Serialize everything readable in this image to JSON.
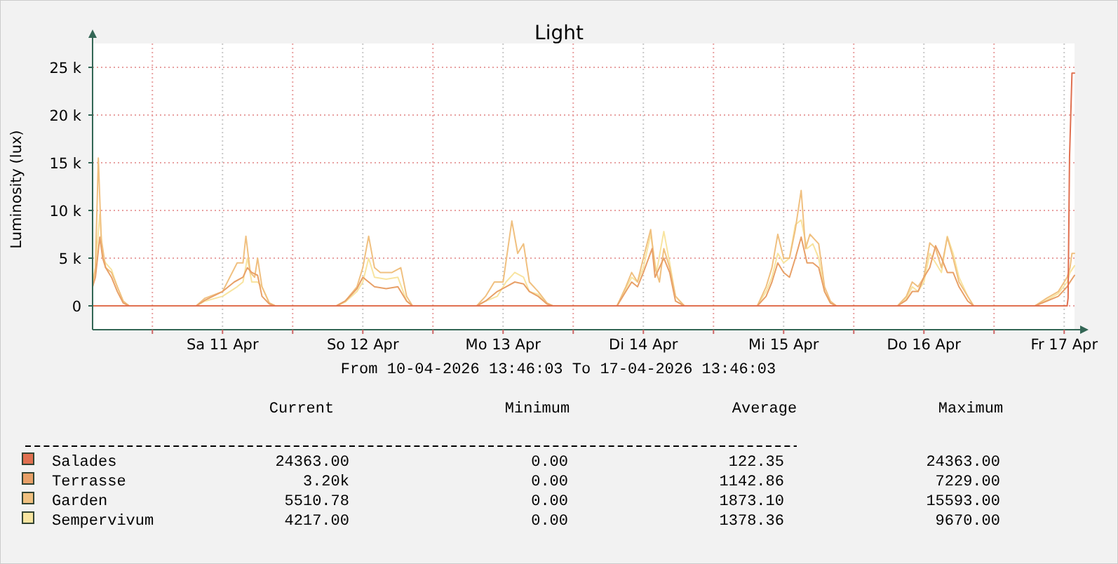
{
  "chart_data": {
    "type": "line",
    "title": "Light",
    "ylabel": "Luminosity (lux)",
    "xlim": [
      "2026-04-10T13:46",
      "2026-04-17T13:46"
    ],
    "xticks": [
      {
        "value": "2026-04-11T00:00",
        "label": null
      },
      {
        "value": "2026-04-11T12:00",
        "label": "Sa 11 Apr"
      },
      {
        "value": "2026-04-12T00:00",
        "label": null
      },
      {
        "value": "2026-04-12T12:00",
        "label": "So 12 Apr"
      },
      {
        "value": "2026-04-13T00:00",
        "label": null
      },
      {
        "value": "2026-04-13T12:00",
        "label": "Mo 13 Apr"
      },
      {
        "value": "2026-04-14T00:00",
        "label": null
      },
      {
        "value": "2026-04-14T12:00",
        "label": "Di 14 Apr"
      },
      {
        "value": "2026-04-15T00:00",
        "label": null
      },
      {
        "value": "2026-04-15T12:00",
        "label": "Mi 15 Apr"
      },
      {
        "value": "2026-04-16T00:00",
        "label": null
      },
      {
        "value": "2026-04-16T12:00",
        "label": "Do 16 Apr"
      },
      {
        "value": "2026-04-17T00:00",
        "label": null
      },
      {
        "value": "2026-04-17T12:00",
        "label": "Fr 17 Apr"
      }
    ],
    "ylim": [
      -2500,
      27500
    ],
    "yticks": [
      0,
      {
        "value": 5000,
        "label": "5 k"
      },
      {
        "value": 10000,
        "label": "10 k"
      },
      {
        "value": 15000,
        "label": "15 k"
      },
      {
        "value": 20000,
        "label": "20 k"
      },
      {
        "value": 25000,
        "label": "25 k"
      }
    ],
    "grid": true,
    "legend": "bottom",
    "marker": "none",
    "line_style": "solid",
    "series": [
      {
        "name": "Sempervivum",
        "color": "#f8e4a0",
        "x": [
          "2026-04-10T13:46",
          "2026-04-10T14:15",
          "2026-04-10T15:00",
          "2026-04-10T15:30",
          "2026-04-10T16:00",
          "2026-04-10T17:00",
          "2026-04-10T18:00",
          "2026-04-10T19:00",
          "2026-04-10T20:00",
          "2026-04-11T07:30",
          "2026-04-11T09:00",
          "2026-04-11T12:00",
          "2026-04-11T14:30",
          "2026-04-11T15:30",
          "2026-04-11T16:15",
          "2026-04-11T17:00",
          "2026-04-11T18:00",
          "2026-04-11T18:45",
          "2026-04-11T20:00",
          "2026-04-11T21:00",
          "2026-04-12T07:30",
          "2026-04-12T09:00",
          "2026-04-12T11:00",
          "2026-04-12T12:00",
          "2026-04-12T13:00",
          "2026-04-12T14:00",
          "2026-04-12T16:00",
          "2026-04-12T18:00",
          "2026-04-12T19:30",
          "2026-04-12T20:30",
          "2026-04-13T07:30",
          "2026-04-13T09:00",
          "2026-04-13T11:00",
          "2026-04-13T12:30",
          "2026-04-13T14:00",
          "2026-04-13T15:30",
          "2026-04-13T16:30",
          "2026-04-13T18:00",
          "2026-04-13T19:30",
          "2026-04-13T20:30",
          "2026-04-14T07:30",
          "2026-04-14T09:00",
          "2026-04-14T10:00",
          "2026-04-14T11:00",
          "2026-04-14T12:00",
          "2026-04-14T13:15",
          "2026-04-14T14:15",
          "2026-04-14T15:30",
          "2026-04-14T16:30",
          "2026-04-14T17:30",
          "2026-04-14T19:00",
          "2026-04-15T07:30",
          "2026-04-15T09:00",
          "2026-04-15T10:00",
          "2026-04-15T11:00",
          "2026-04-15T12:00",
          "2026-04-15T13:00",
          "2026-04-15T14:00",
          "2026-04-15T15:00",
          "2026-04-15T16:00",
          "2026-04-15T17:00",
          "2026-04-15T18:00",
          "2026-04-15T19:00",
          "2026-04-15T20:00",
          "2026-04-15T21:00",
          "2026-04-16T07:30",
          "2026-04-16T09:00",
          "2026-04-16T10:00",
          "2026-04-16T11:00",
          "2026-04-16T12:00",
          "2026-04-16T13:00",
          "2026-04-16T14:00",
          "2026-04-16T15:00",
          "2026-04-16T16:00",
          "2026-04-16T17:00",
          "2026-04-16T18:00",
          "2026-04-16T19:30",
          "2026-04-16T20:30",
          "2026-04-17T07:00",
          "2026-04-17T09:00",
          "2026-04-17T11:00",
          "2026-04-17T12:30",
          "2026-04-17T13:00",
          "2026-04-17T13:46"
        ],
        "values": [
          2500,
          4000,
          9600,
          5000,
          4500,
          3800,
          2000,
          500,
          0,
          0,
          500,
          1000,
          2000,
          2500,
          5000,
          2500,
          2500,
          2000,
          300,
          0,
          0,
          400,
          1500,
          2500,
          5000,
          3000,
          2800,
          3000,
          500,
          0,
          0,
          500,
          1000,
          2500,
          3500,
          3000,
          1500,
          1200,
          200,
          0,
          0,
          1800,
          3000,
          2500,
          4000,
          7500,
          3500,
          7800,
          4500,
          1000,
          0,
          0,
          1500,
          3000,
          5500,
          4500,
          5000,
          8500,
          9000,
          6000,
          6500,
          5000,
          1500,
          300,
          0,
          0,
          800,
          2000,
          1500,
          2500,
          5500,
          4500,
          3500,
          7300,
          5500,
          3000,
          1000,
          0,
          0,
          600,
          1300,
          2500,
          3500,
          4200
        ]
      },
      {
        "name": "Garden",
        "color": "#f0c080",
        "x": [
          "2026-04-10T13:46",
          "2026-04-10T14:15",
          "2026-04-10T14:45",
          "2026-04-10T15:15",
          "2026-04-10T16:00",
          "2026-04-10T17:00",
          "2026-04-10T18:00",
          "2026-04-10T19:00",
          "2026-04-10T20:00",
          "2026-04-11T07:30",
          "2026-04-11T09:00",
          "2026-04-11T12:00",
          "2026-04-11T14:30",
          "2026-04-11T15:30",
          "2026-04-11T16:00",
          "2026-04-11T16:45",
          "2026-04-11T17:30",
          "2026-04-11T18:00",
          "2026-04-11T18:45",
          "2026-04-11T20:00",
          "2026-04-11T21:00",
          "2026-04-12T07:30",
          "2026-04-12T09:00",
          "2026-04-12T11:00",
          "2026-04-12T12:00",
          "2026-04-12T13:00",
          "2026-04-12T14:00",
          "2026-04-12T15:00",
          "2026-04-12T17:00",
          "2026-04-12T18:30",
          "2026-04-12T19:30",
          "2026-04-12T20:30",
          "2026-04-13T07:30",
          "2026-04-13T09:00",
          "2026-04-13T10:30",
          "2026-04-13T12:00",
          "2026-04-13T13:30",
          "2026-04-13T14:30",
          "2026-04-13T15:30",
          "2026-04-13T16:30",
          "2026-04-13T18:00",
          "2026-04-13T19:30",
          "2026-04-13T20:30",
          "2026-04-14T07:30",
          "2026-04-14T09:00",
          "2026-04-14T10:00",
          "2026-04-14T11:00",
          "2026-04-14T12:00",
          "2026-04-14T13:15",
          "2026-04-14T14:00",
          "2026-04-14T14:45",
          "2026-04-14T15:30",
          "2026-04-14T16:30",
          "2026-04-14T17:30",
          "2026-04-14T19:00",
          "2026-04-15T07:30",
          "2026-04-15T09:00",
          "2026-04-15T10:00",
          "2026-04-15T11:00",
          "2026-04-15T12:00",
          "2026-04-15T13:00",
          "2026-04-15T14:00",
          "2026-04-15T15:00",
          "2026-04-15T15:45",
          "2026-04-15T16:30",
          "2026-04-15T18:00",
          "2026-04-15T19:00",
          "2026-04-15T20:00",
          "2026-04-15T21:00",
          "2026-04-16T07:30",
          "2026-04-16T09:00",
          "2026-04-16T10:00",
          "2026-04-16T11:00",
          "2026-04-16T12:00",
          "2026-04-16T13:00",
          "2026-04-16T14:00",
          "2026-04-16T15:00",
          "2026-04-16T16:00",
          "2026-04-16T17:00",
          "2026-04-16T18:00",
          "2026-04-16T19:30",
          "2026-04-16T20:30",
          "2026-04-17T07:00",
          "2026-04-17T09:00",
          "2026-04-17T11:00",
          "2026-04-17T12:30",
          "2026-04-17T13:00",
          "2026-04-17T13:20",
          "2026-04-17T13:46"
        ],
        "values": [
          2000,
          4000,
          15500,
          7000,
          4000,
          3500,
          2000,
          500,
          0,
          0,
          800,
          1500,
          4500,
          4500,
          7300,
          3500,
          3000,
          5000,
          2000,
          300,
          0,
          0,
          500,
          2000,
          4000,
          7300,
          4000,
          3500,
          3500,
          4000,
          1000,
          0,
          0,
          1000,
          2500,
          2500,
          8900,
          5500,
          6500,
          2500,
          1500,
          300,
          0,
          0,
          2000,
          3500,
          2500,
          5000,
          8000,
          4000,
          2500,
          6000,
          4000,
          1000,
          0,
          0,
          2000,
          4000,
          7500,
          5000,
          5000,
          8000,
          12100,
          6000,
          7500,
          6500,
          2000,
          500,
          0,
          0,
          1000,
          2500,
          2000,
          3000,
          6600,
          6000,
          4000,
          7200,
          5000,
          2500,
          1000,
          0,
          0,
          800,
          1500,
          3000,
          4000,
          5500,
          5500
        ]
      },
      {
        "name": "Terrasse",
        "color": "#e8a068",
        "x": [
          "2026-04-10T13:46",
          "2026-04-10T14:15",
          "2026-04-10T15:00",
          "2026-04-10T15:30",
          "2026-04-10T16:00",
          "2026-04-10T17:00",
          "2026-04-10T18:00",
          "2026-04-10T19:00",
          "2026-04-10T20:00",
          "2026-04-11T07:30",
          "2026-04-11T09:00",
          "2026-04-11T12:00",
          "2026-04-11T14:00",
          "2026-04-11T15:30",
          "2026-04-11T16:15",
          "2026-04-11T17:00",
          "2026-04-11T18:00",
          "2026-04-11T18:45",
          "2026-04-11T20:00",
          "2026-04-11T21:00",
          "2026-04-12T07:30",
          "2026-04-12T09:00",
          "2026-04-12T11:00",
          "2026-04-12T12:00",
          "2026-04-12T13:00",
          "2026-04-12T14:00",
          "2026-04-12T16:00",
          "2026-04-12T18:00",
          "2026-04-12T19:30",
          "2026-04-12T20:30",
          "2026-04-13T07:30",
          "2026-04-13T09:00",
          "2026-04-13T11:00",
          "2026-04-13T12:30",
          "2026-04-13T14:00",
          "2026-04-13T15:30",
          "2026-04-13T16:30",
          "2026-04-13T18:00",
          "2026-04-13T19:30",
          "2026-04-13T20:30",
          "2026-04-14T07:30",
          "2026-04-14T09:00",
          "2026-04-14T10:00",
          "2026-04-14T11:00",
          "2026-04-14T12:00",
          "2026-04-14T13:30",
          "2026-04-14T14:00",
          "2026-04-14T15:30",
          "2026-04-14T16:30",
          "2026-04-14T17:30",
          "2026-04-14T19:00",
          "2026-04-15T07:30",
          "2026-04-15T09:00",
          "2026-04-15T10:00",
          "2026-04-15T11:00",
          "2026-04-15T12:00",
          "2026-04-15T13:00",
          "2026-04-15T14:00",
          "2026-04-15T15:00",
          "2026-04-15T16:00",
          "2026-04-15T17:00",
          "2026-04-15T18:00",
          "2026-04-15T19:00",
          "2026-04-15T20:00",
          "2026-04-15T21:00",
          "2026-04-16T07:30",
          "2026-04-16T09:00",
          "2026-04-16T10:00",
          "2026-04-16T11:00",
          "2026-04-16T12:00",
          "2026-04-16T13:00",
          "2026-04-16T14:00",
          "2026-04-16T15:00",
          "2026-04-16T16:00",
          "2026-04-16T17:00",
          "2026-04-16T18:00",
          "2026-04-16T19:30",
          "2026-04-16T20:30",
          "2026-04-17T07:00",
          "2026-04-17T09:00",
          "2026-04-17T11:00",
          "2026-04-17T12:30",
          "2026-04-17T13:00",
          "2026-04-17T13:46"
        ],
        "values": [
          2000,
          3000,
          7200,
          5000,
          4000,
          3000,
          1500,
          300,
          0,
          0,
          600,
          1500,
          2500,
          3000,
          4000,
          3500,
          3200,
          1000,
          200,
          0,
          0,
          500,
          1800,
          3000,
          2500,
          2000,
          1800,
          2000,
          500,
          0,
          0,
          500,
          1500,
          2000,
          2500,
          2300,
          1500,
          1000,
          200,
          0,
          0,
          1500,
          2500,
          2000,
          3500,
          6000,
          3000,
          5000,
          3500,
          500,
          0,
          0,
          1000,
          2500,
          4500,
          3500,
          3000,
          5000,
          7200,
          4500,
          4500,
          4000,
          1500,
          300,
          0,
          0,
          600,
          1500,
          1500,
          3000,
          4000,
          6300,
          5000,
          3500,
          3500,
          2000,
          500,
          0,
          0,
          500,
          1000,
          2000,
          2500,
          3200
        ]
      },
      {
        "name": "Salades",
        "color": "#e07050",
        "x": [
          "2026-04-10T13:46",
          "2026-04-17T12:30",
          "2026-04-17T12:40",
          "2026-04-17T12:55",
          "2026-04-17T13:20",
          "2026-04-17T13:46"
        ],
        "values": [
          0,
          0,
          800,
          15600,
          24400,
          24400
        ]
      }
    ],
    "annotations": [
      "From 10-04-2026 13:46:03 To 17-04-2026 13:46:03",
      "Current",
      "Minimum",
      "Average",
      "Maximum",
      "24363.00",
      "0.00",
      "122.35",
      "24363.00",
      "3.20k",
      "0.00",
      "1142.86",
      "7229.00",
      "5510.78",
      "0.00",
      "1873.10",
      "15593.00",
      "4217.00",
      "0.00",
      "1378.36",
      "9670.00"
    ]
  }
}
